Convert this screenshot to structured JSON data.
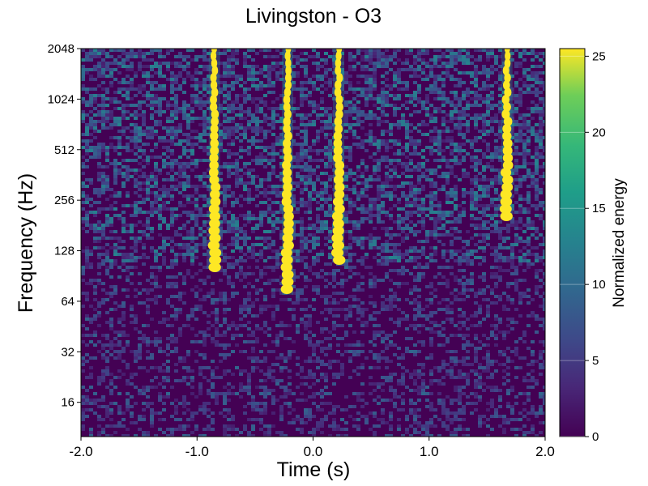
{
  "chart_data": {
    "type": "heatmap",
    "title": "Livingston - O3",
    "xlabel": "Time (s)",
    "ylabel": "Frequency (Hz)",
    "colorbar_label": "Normalized energy",
    "colormap": "viridis",
    "x_range": [
      -2.0,
      2.0
    ],
    "y_range": [
      10,
      2048
    ],
    "y_scale": "log2",
    "x_ticks": [
      "-2.0",
      "-1.0",
      "0.0",
      "1.0",
      "2.0"
    ],
    "y_ticks": [
      "16",
      "32",
      "64",
      "128",
      "256",
      "512",
      "1024",
      "2048"
    ],
    "colorbar_range": [
      0,
      25.5
    ],
    "colorbar_ticks": [
      "0",
      "5",
      "10",
      "15",
      "20",
      "25"
    ],
    "features": [
      {
        "kind": "glitch-track",
        "time": -0.85,
        "freq_range": [
          100,
          2048
        ]
      },
      {
        "kind": "glitch-track",
        "time": -0.22,
        "freq_range": [
          70,
          2048
        ]
      },
      {
        "kind": "glitch-track",
        "time": 0.22,
        "freq_range": [
          110,
          2048
        ]
      },
      {
        "kind": "glitch-track",
        "time": 1.67,
        "freq_range": [
          200,
          2048
        ]
      }
    ]
  },
  "colors": {
    "viridis_low": "#440154",
    "viridis_mid": "#21918c",
    "viridis_high": "#fde725",
    "background": "#ffffff"
  }
}
